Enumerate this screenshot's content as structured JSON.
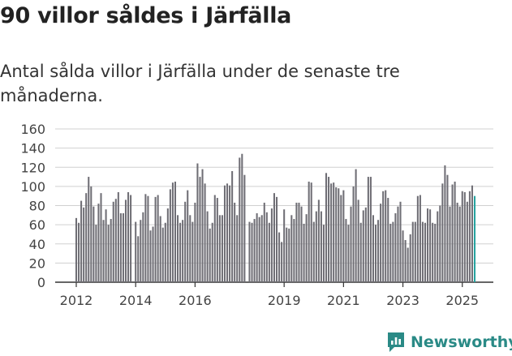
{
  "header": {
    "title": "90 villor såldes i Järfälla",
    "subtitle": "Antal sålda villor i Järfälla under de senaste tre månaderna."
  },
  "brand": {
    "name": "Newsworthy"
  },
  "colors": {
    "bar": "#6f6e75",
    "highlight": "#27a3a0",
    "grid": "#d0d0d0",
    "axis": "#333333",
    "brand": "#2a8a86"
  },
  "chart_data": {
    "type": "bar",
    "title": "",
    "xlabel": "",
    "ylabel": "",
    "ylim": [
      0,
      160
    ],
    "yticks": [
      0,
      20,
      40,
      60,
      80,
      100,
      120,
      140,
      160
    ],
    "xticks": [
      {
        "label": "2012",
        "index": 0
      },
      {
        "label": "2014",
        "index": 24
      },
      {
        "label": "2016",
        "index": 48
      },
      {
        "label": "2019",
        "index": 84
      },
      {
        "label": "2021",
        "index": 108
      },
      {
        "label": "2023",
        "index": 132
      },
      {
        "label": "2025",
        "index": 156
      }
    ],
    "annotation": {
      "text": "90",
      "index": 163
    },
    "series": [
      {
        "values": [
          67,
          62,
          85,
          78,
          93,
          110,
          100,
          79,
          60,
          82,
          93,
          65,
          76,
          60,
          66,
          84,
          87,
          94,
          72,
          72,
          86,
          94,
          91,
          0,
          63,
          48,
          65,
          73,
          92,
          90,
          54,
          58,
          89,
          91,
          69,
          57,
          62,
          77,
          97,
          104,
          105,
          70,
          62,
          65,
          84,
          96,
          70,
          63,
          83,
          124,
          110,
          118,
          103,
          74,
          56,
          62,
          91,
          88,
          70,
          70,
          101,
          103,
          101,
          116,
          83,
          70,
          130,
          134,
          112,
          0,
          63,
          62,
          66,
          72,
          68,
          70,
          83,
          73,
          62,
          77,
          93,
          89,
          52,
          42,
          76,
          57,
          56,
          70,
          66,
          83,
          83,
          79,
          61,
          71,
          105,
          104,
          63,
          74,
          86,
          74,
          60,
          114,
          110,
          103,
          104,
          99,
          98,
          91,
          96,
          66,
          60,
          79,
          100,
          118,
          86,
          62,
          75,
          78,
          110,
          110,
          70,
          60,
          65,
          82,
          95,
          96,
          88,
          61,
          63,
          72,
          79,
          84,
          54,
          44,
          36,
          50,
          63,
          63,
          90,
          91,
          63,
          62,
          77,
          76,
          62,
          61,
          74,
          80,
          103,
          122,
          112,
          79,
          102,
          105,
          83,
          79,
          95,
          94,
          84,
          95,
          101,
          90
        ]
      }
    ]
  }
}
